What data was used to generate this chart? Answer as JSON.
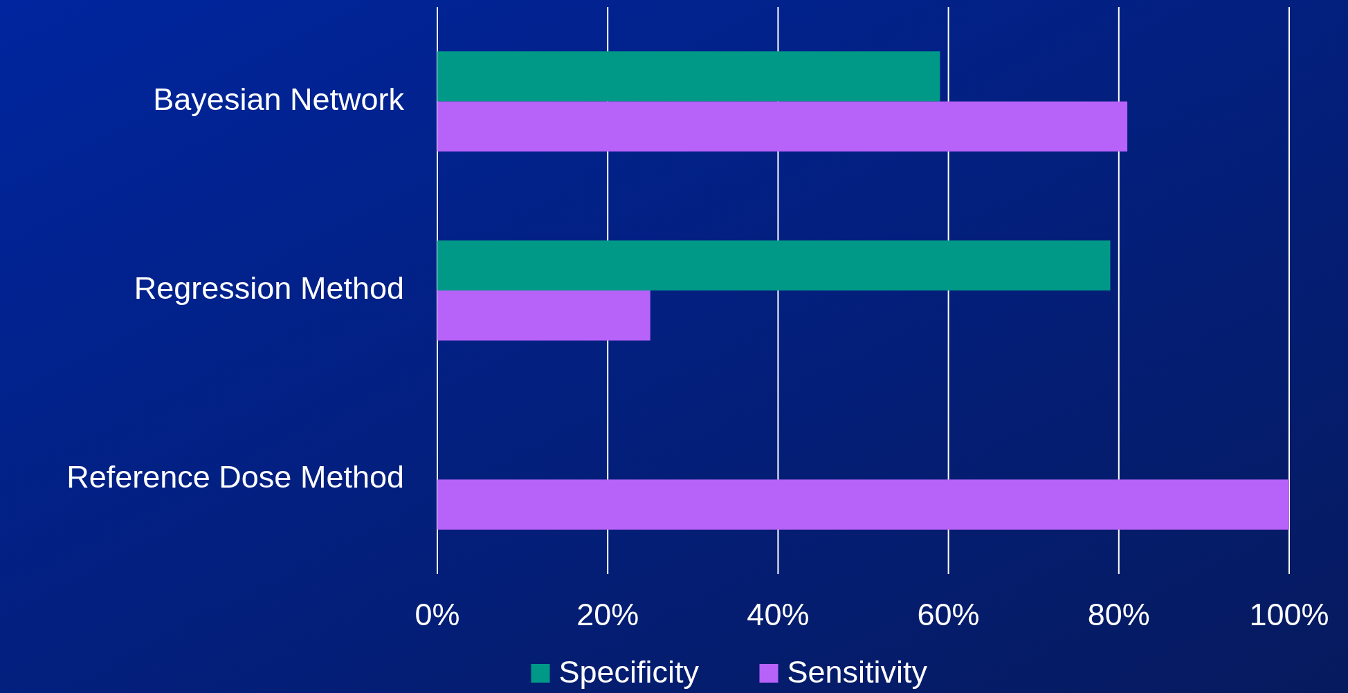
{
  "chart_data": {
    "type": "bar",
    "orientation": "horizontal",
    "categories": [
      "Bayesian Network",
      "Regression Method",
      "Reference Dose Method"
    ],
    "series": [
      {
        "name": "Specificity",
        "color": "#009988",
        "values": [
          59,
          79,
          0
        ]
      },
      {
        "name": "Sensitivity",
        "color": "#b762f8",
        "values": [
          81,
          25,
          100
        ]
      }
    ],
    "xlim": [
      0,
      100
    ],
    "xticks": [
      {
        "value": 0,
        "label": "0%"
      },
      {
        "value": 20,
        "label": "20%"
      },
      {
        "value": 40,
        "label": "40%"
      },
      {
        "value": 60,
        "label": "60%"
      },
      {
        "value": 80,
        "label": "80%"
      },
      {
        "value": 100,
        "label": "100%"
      }
    ],
    "grid": "x",
    "legend": "bottom"
  }
}
